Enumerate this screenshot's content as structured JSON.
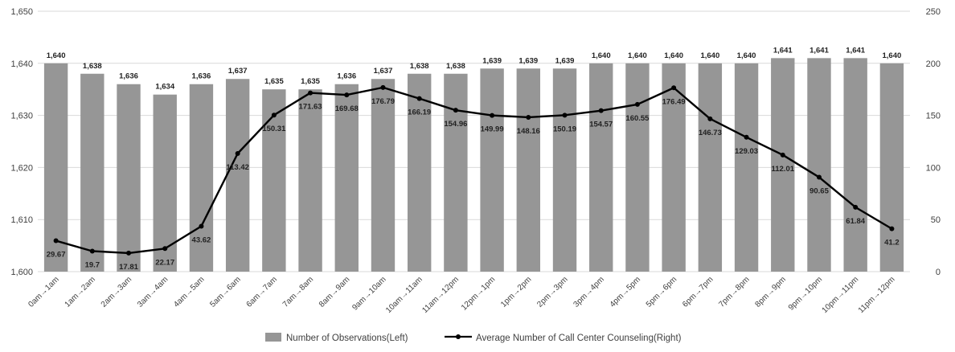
{
  "chart_data": {
    "type": "bar",
    "categories": [
      "0am→1am",
      "1am→2am",
      "2am→3am",
      "3am→4am",
      "4am→5am",
      "5am→6am",
      "6am→7am",
      "7am→8am",
      "8am→9am",
      "9am→10am",
      "10am→11am",
      "11am→12pm",
      "12pm→1pm",
      "1pm→2pm",
      "2pm→3pm",
      "3pm→4pm",
      "4pm→5pm",
      "5pm→6pm",
      "6pm→7pm",
      "7pm→8pm",
      "8pm→9pm",
      "9pm→10pm",
      "10pm→11pm",
      "11pm→12pm"
    ],
    "series": [
      {
        "name": "Number of Observations(Left)",
        "type": "bar",
        "axis": "left",
        "color": "#969696",
        "values": [
          1640,
          1638,
          1636,
          1634,
          1636,
          1637,
          1635,
          1635,
          1636,
          1637,
          1638,
          1638,
          1639,
          1639,
          1639,
          1640,
          1640,
          1640,
          1640,
          1640,
          1641,
          1641,
          1641,
          1640
        ],
        "labels": [
          "1,640",
          "1,638",
          "1,636",
          "1,634",
          "1,636",
          "1,637",
          "1,635",
          "1,635",
          "1,636",
          "1,637",
          "1,638",
          "1,638",
          "1,639",
          "1,639",
          "1,639",
          "1,640",
          "1,640",
          "1,640",
          "1,640",
          "1,640",
          "1,641",
          "1,641",
          "1,641",
          "1,640"
        ]
      },
      {
        "name": "Average Number of Call Center Counseling(Right)",
        "type": "line",
        "axis": "right",
        "color": "#000000",
        "values": [
          29.67,
          19.7,
          17.81,
          22.17,
          43.62,
          113.42,
          150.31,
          171.63,
          169.68,
          176.79,
          166.19,
          154.96,
          149.99,
          148.16,
          150.19,
          154.57,
          160.55,
          176.49,
          146.73,
          129.03,
          112.01,
          90.65,
          61.84,
          41.2
        ],
        "labels": [
          "29.67",
          "19.7",
          "17.81",
          "22.17",
          "43.62",
          "113.42",
          "150.31",
          "171.63",
          "169.68",
          "176.79",
          "166.19",
          "154.96",
          "149.99",
          "148.16",
          "150.19",
          "154.57",
          "160.55",
          "176.49",
          "146.73",
          "129.03",
          "112.01",
          "90.65",
          "61.84",
          "41.2"
        ]
      }
    ],
    "left_axis": {
      "range": [
        1600,
        1650
      ],
      "ticks": [
        "1,600",
        "1,610",
        "1,620",
        "1,630",
        "1,640",
        "1,650"
      ]
    },
    "right_axis": {
      "range": [
        0,
        250
      ],
      "ticks": [
        "0",
        "50",
        "100",
        "150",
        "200",
        "250"
      ]
    },
    "grid": true,
    "legend": "bottom-center"
  }
}
